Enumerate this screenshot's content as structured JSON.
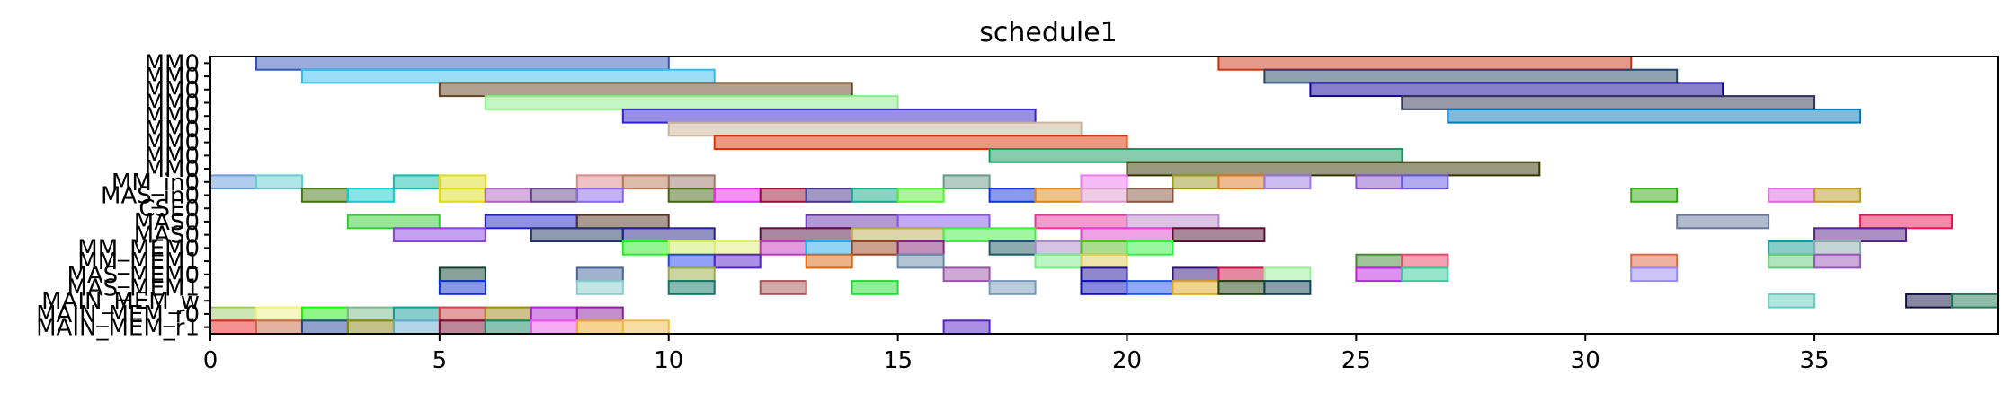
{
  "chart_data": {
    "type": "gantt",
    "title": "schedule1",
    "xlim": [
      0,
      39
    ],
    "x_ticks": [
      0,
      5,
      10,
      15,
      20,
      25,
      30,
      35
    ],
    "grid": false,
    "rows": [
      "MM0",
      "MM0",
      "MM0",
      "MM0",
      "MM0",
      "MM0",
      "MM0",
      "MM0",
      "MM0",
      "MM_in0",
      "MAS_in0",
      "CSE0",
      "MAS0",
      "MAS0",
      "MM_MEM0",
      "MM_MEM1",
      "MAS_MEM0",
      "MAS_MEM1",
      "MAIN_MEM_w",
      "MAIN_MEM_r0",
      "MAIN_MEM_r1"
    ],
    "bars": [
      {
        "row": 0,
        "start": 1,
        "end": 10,
        "color": "#3355bb"
      },
      {
        "row": 0,
        "start": 22,
        "end": 31,
        "color": "#cc3311"
      },
      {
        "row": 1,
        "start": 2,
        "end": 11,
        "color": "#33bbee"
      },
      {
        "row": 1,
        "start": 23,
        "end": 32,
        "color": "#224466"
      },
      {
        "row": 2,
        "start": 5,
        "end": 14,
        "color": "#664422"
      },
      {
        "row": 2,
        "start": 24,
        "end": 33,
        "color": "#110099"
      },
      {
        "row": 3,
        "start": 6,
        "end": 15,
        "color": "#88ee88"
      },
      {
        "row": 3,
        "start": 26,
        "end": 35,
        "color": "#333355"
      },
      {
        "row": 4,
        "start": 9,
        "end": 18,
        "color": "#3322cc"
      },
      {
        "row": 4,
        "start": 27,
        "end": 36,
        "color": "#0077bb"
      },
      {
        "row": 5,
        "start": 10,
        "end": 19,
        "color": "#ccb399"
      },
      {
        "row": 6,
        "start": 11,
        "end": 20,
        "color": "#dd3300"
      },
      {
        "row": 7,
        "start": 17,
        "end": 26,
        "color": "#11995e"
      },
      {
        "row": 8,
        "start": 20,
        "end": 29,
        "color": "#333300"
      },
      {
        "row": 9,
        "start": 0,
        "end": 1,
        "color": "#6699dd"
      },
      {
        "row": 9,
        "start": 1,
        "end": 2,
        "color": "#66cccc"
      },
      {
        "row": 9,
        "start": 4,
        "end": 5,
        "color": "#11bbaa"
      },
      {
        "row": 9,
        "start": 5,
        "end": 6,
        "color": "#dddd22"
      },
      {
        "row": 9,
        "start": 8,
        "end": 9,
        "color": "#dd8888"
      },
      {
        "row": 9,
        "start": 9,
        "end": 10,
        "color": "#bb7755"
      },
      {
        "row": 9,
        "start": 10,
        "end": 11,
        "color": "#997766"
      },
      {
        "row": 9,
        "start": 16,
        "end": 17,
        "color": "#669988"
      },
      {
        "row": 9,
        "start": 19,
        "end": 20,
        "color": "#ee77ee"
      },
      {
        "row": 9,
        "start": 21,
        "end": 22,
        "color": "#999922"
      },
      {
        "row": 9,
        "start": 22,
        "end": 23,
        "color": "#dd7722"
      },
      {
        "row": 9,
        "start": 23,
        "end": 24,
        "color": "#9977dd"
      },
      {
        "row": 9,
        "start": 25,
        "end": 26,
        "color": "#8855cc"
      },
      {
        "row": 9,
        "start": 26,
        "end": 27,
        "color": "#6655dd"
      },
      {
        "row": 10,
        "start": 2,
        "end": 3,
        "color": "#447711"
      },
      {
        "row": 10,
        "start": 3,
        "end": 4,
        "color": "#11cccc"
      },
      {
        "row": 10,
        "start": 5,
        "end": 6,
        "color": "#dddd11"
      },
      {
        "row": 10,
        "start": 6,
        "end": 7,
        "color": "#aa66bb"
      },
      {
        "row": 10,
        "start": 7,
        "end": 8,
        "color": "#664488"
      },
      {
        "row": 10,
        "start": 8,
        "end": 9,
        "color": "#8866ee"
      },
      {
        "row": 10,
        "start": 10,
        "end": 11,
        "color": "#446611"
      },
      {
        "row": 10,
        "start": 11,
        "end": 12,
        "color": "#ee22ee"
      },
      {
        "row": 10,
        "start": 12,
        "end": 13,
        "color": "#991133"
      },
      {
        "row": 10,
        "start": 13,
        "end": 14,
        "color": "#443388"
      },
      {
        "row": 10,
        "start": 14,
        "end": 15,
        "color": "#11aa88"
      },
      {
        "row": 10,
        "start": 15,
        "end": 16,
        "color": "#55ee33"
      },
      {
        "row": 10,
        "start": 17,
        "end": 18,
        "color": "#1133dd"
      },
      {
        "row": 10,
        "start": 18,
        "end": 19,
        "color": "#dd8811"
      },
      {
        "row": 10,
        "start": 19,
        "end": 20,
        "color": "#dd99cc"
      },
      {
        "row": 10,
        "start": 20,
        "end": 21,
        "color": "#885544"
      },
      {
        "row": 10,
        "start": 31,
        "end": 32,
        "color": "#33aa11"
      },
      {
        "row": 10,
        "start": 34,
        "end": 35,
        "color": "#dd66dd"
      },
      {
        "row": 10,
        "start": 35,
        "end": 36,
        "color": "#bb9922"
      },
      {
        "row": 12,
        "start": 3,
        "end": 5,
        "color": "#33cc33"
      },
      {
        "row": 12,
        "start": 6,
        "end": 8,
        "color": "#2222cc"
      },
      {
        "row": 12,
        "start": 8,
        "end": 10,
        "color": "#553322"
      },
      {
        "row": 12,
        "start": 13,
        "end": 15,
        "color": "#6633aa"
      },
      {
        "row": 12,
        "start": 15,
        "end": 17,
        "color": "#8855ee"
      },
      {
        "row": 12,
        "start": 18,
        "end": 20,
        "color": "#ee3399"
      },
      {
        "row": 12,
        "start": 20,
        "end": 22,
        "color": "#bb88cc"
      },
      {
        "row": 12,
        "start": 32,
        "end": 34,
        "color": "#667799"
      },
      {
        "row": 12,
        "start": 36,
        "end": 38,
        "color": "#ee1155"
      },
      {
        "row": 13,
        "start": 4,
        "end": 6,
        "color": "#8844dd"
      },
      {
        "row": 13,
        "start": 7,
        "end": 9,
        "color": "#223366"
      },
      {
        "row": 13,
        "start": 9,
        "end": 11,
        "color": "#222288"
      },
      {
        "row": 13,
        "start": 12,
        "end": 14,
        "color": "#551144"
      },
      {
        "row": 13,
        "start": 14,
        "end": 16,
        "color": "#bbaa55"
      },
      {
        "row": 13,
        "start": 16,
        "end": 18,
        "color": "#44ee44"
      },
      {
        "row": 13,
        "start": 19,
        "end": 21,
        "color": "#dd44cc"
      },
      {
        "row": 13,
        "start": 21,
        "end": 23,
        "color": "#551133"
      },
      {
        "row": 13,
        "start": 35,
        "end": 37,
        "color": "#552288"
      },
      {
        "row": 14,
        "start": 9,
        "end": 10,
        "color": "#22ee22"
      },
      {
        "row": 14,
        "start": 10,
        "end": 11,
        "color": "#ccee66"
      },
      {
        "row": 14,
        "start": 11,
        "end": 12,
        "color": "#ddee77"
      },
      {
        "row": 14,
        "start": 12,
        "end": 13,
        "color": "#cc33bb"
      },
      {
        "row": 14,
        "start": 13,
        "end": 14,
        "color": "#22aaee"
      },
      {
        "row": 14,
        "start": 14,
        "end": 15,
        "color": "#994422"
      },
      {
        "row": 14,
        "start": 15,
        "end": 16,
        "color": "#882277"
      },
      {
        "row": 14,
        "start": 17,
        "end": 18,
        "color": "#225566"
      },
      {
        "row": 14,
        "start": 18,
        "end": 19,
        "color": "#aa88cc"
      },
      {
        "row": 14,
        "start": 19,
        "end": 20,
        "color": "#55bb22"
      },
      {
        "row": 14,
        "start": 20,
        "end": 21,
        "color": "#33ee44"
      },
      {
        "row": 14,
        "start": 34,
        "end": 35,
        "color": "#119999"
      },
      {
        "row": 14,
        "start": 35,
        "end": 36,
        "color": "#88aaaa"
      },
      {
        "row": 15,
        "start": 10,
        "end": 11,
        "color": "#2244ee"
      },
      {
        "row": 15,
        "start": 11,
        "end": 12,
        "color": "#5522cc"
      },
      {
        "row": 15,
        "start": 13,
        "end": 14,
        "color": "#dd6611"
      },
      {
        "row": 15,
        "start": 15,
        "end": 16,
        "color": "#6688aa"
      },
      {
        "row": 15,
        "start": 18,
        "end": 19,
        "color": "#77ee88"
      },
      {
        "row": 15,
        "start": 19,
        "end": 20,
        "color": "#ddcc55"
      },
      {
        "row": 15,
        "start": 25,
        "end": 26,
        "color": "#448833"
      },
      {
        "row": 15,
        "start": 26,
        "end": 27,
        "color": "#ee4466"
      },
      {
        "row": 15,
        "start": 31,
        "end": 32,
        "color": "#dd6644"
      },
      {
        "row": 15,
        "start": 34,
        "end": 35,
        "color": "#66cc77"
      },
      {
        "row": 15,
        "start": 35,
        "end": 36,
        "color": "#9955bb"
      },
      {
        "row": 16,
        "start": 5,
        "end": 6,
        "color": "#114433"
      },
      {
        "row": 16,
        "start": 8,
        "end": 9,
        "color": "#446699"
      },
      {
        "row": 16,
        "start": 10,
        "end": 11,
        "color": "#99aa44"
      },
      {
        "row": 16,
        "start": 16,
        "end": 17,
        "color": "#9955aa"
      },
      {
        "row": 16,
        "start": 19,
        "end": 20,
        "color": "#221199"
      },
      {
        "row": 16,
        "start": 21,
        "end": 22,
        "color": "#331177"
      },
      {
        "row": 16,
        "start": 22,
        "end": 23,
        "color": "#cc1144"
      },
      {
        "row": 16,
        "start": 23,
        "end": 24,
        "color": "#99ee99"
      },
      {
        "row": 16,
        "start": 25,
        "end": 26,
        "color": "#bb22dd"
      },
      {
        "row": 16,
        "start": 26,
        "end": 27,
        "color": "#33cc99"
      },
      {
        "row": 16,
        "start": 31,
        "end": 32,
        "color": "#9988ee"
      },
      {
        "row": 17,
        "start": 5,
        "end": 6,
        "color": "#1133cc"
      },
      {
        "row": 17,
        "start": 8,
        "end": 9,
        "color": "#88cccc"
      },
      {
        "row": 17,
        "start": 10,
        "end": 11,
        "color": "#117766"
      },
      {
        "row": 17,
        "start": 12,
        "end": 13,
        "color": "#aa5555"
      },
      {
        "row": 17,
        "start": 14,
        "end": 15,
        "color": "#22dd33"
      },
      {
        "row": 17,
        "start": 17,
        "end": 18,
        "color": "#7799bb"
      },
      {
        "row": 17,
        "start": 19,
        "end": 20,
        "color": "#1111bb"
      },
      {
        "row": 17,
        "start": 20,
        "end": 21,
        "color": "#2255ee"
      },
      {
        "row": 17,
        "start": 21,
        "end": 22,
        "color": "#ddaa22"
      },
      {
        "row": 17,
        "start": 22,
        "end": 23,
        "color": "#224411"
      },
      {
        "row": 17,
        "start": 23,
        "end": 24,
        "color": "#114455"
      },
      {
        "row": 18,
        "start": 34,
        "end": 35,
        "color": "#66ccbb"
      },
      {
        "row": 18,
        "start": 37,
        "end": 38,
        "color": "#111144"
      },
      {
        "row": 18,
        "start": 38,
        "end": 39,
        "color": "#227755"
      },
      {
        "row": 19,
        "start": 0,
        "end": 1,
        "color": "#99cc66"
      },
      {
        "row": 19,
        "start": 1,
        "end": 2,
        "color": "#eeee88"
      },
      {
        "row": 19,
        "start": 2,
        "end": 3,
        "color": "#22ee11"
      },
      {
        "row": 19,
        "start": 3,
        "end": 4,
        "color": "#77bb88"
      },
      {
        "row": 19,
        "start": 4,
        "end": 5,
        "color": "#119999"
      },
      {
        "row": 19,
        "start": 5,
        "end": 6,
        "color": "#cc4444"
      },
      {
        "row": 19,
        "start": 6,
        "end": 7,
        "color": "#998811"
      },
      {
        "row": 19,
        "start": 7,
        "end": 8,
        "color": "#aa22cc"
      },
      {
        "row": 19,
        "start": 8,
        "end": 9,
        "color": "#882299"
      },
      {
        "row": 20,
        "start": 0,
        "end": 1,
        "color": "#ee2222"
      },
      {
        "row": 20,
        "start": 1,
        "end": 2,
        "color": "#cc6644"
      },
      {
        "row": 20,
        "start": 2,
        "end": 3,
        "color": "#224499"
      },
      {
        "row": 20,
        "start": 3,
        "end": 4,
        "color": "#888811"
      },
      {
        "row": 20,
        "start": 4,
        "end": 5,
        "color": "#66aacc"
      },
      {
        "row": 20,
        "start": 5,
        "end": 6,
        "color": "#771133"
      },
      {
        "row": 20,
        "start": 6,
        "end": 7,
        "color": "#118866"
      },
      {
        "row": 20,
        "start": 7,
        "end": 8,
        "color": "#ee55ee"
      },
      {
        "row": 20,
        "start": 8,
        "end": 9,
        "color": "#eeaa22"
      },
      {
        "row": 20,
        "start": 9,
        "end": 10,
        "color": "#eebb44"
      },
      {
        "row": 20,
        "start": 16,
        "end": 17,
        "color": "#5522cc"
      }
    ]
  }
}
